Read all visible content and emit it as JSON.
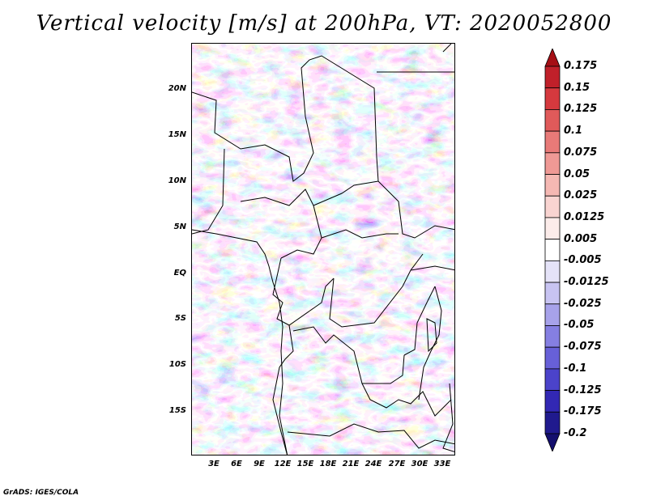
{
  "title": "Vertical velocity [m/s] at 200hPa, VT: 2020052800",
  "credit": "GrADS: IGES/COLA",
  "lat_labels": [
    "20N",
    "15N",
    "10N",
    "5N",
    "EQ",
    "5S",
    "10S",
    "15S"
  ],
  "lon_labels": [
    "3E",
    "6E",
    "9E",
    "12E",
    "15E",
    "18E",
    "21E",
    "24E",
    "27E",
    "30E",
    "33E"
  ],
  "colorbar": {
    "labels": [
      "0.175",
      "0.15",
      "0.125",
      "0.1",
      "0.075",
      "0.05",
      "0.025",
      "0.0125",
      "0.005",
      "-0.005",
      "-0.0125",
      "-0.025",
      "-0.05",
      "-0.075",
      "-0.1",
      "-0.125",
      "-0.175",
      "-0.2"
    ],
    "colors": [
      "#a50f15",
      "#c0202a",
      "#d5393e",
      "#e05a5a",
      "#e87a78",
      "#ef9995",
      "#f5b8b3",
      "#f9d4d1",
      "#fcecea",
      "#ffffff",
      "#e5e3f8",
      "#c8c4f2",
      "#a7a2ea",
      "#857fe2",
      "#6760d8",
      "#4b43ca",
      "#3228b4",
      "#201a8e",
      "#140f6e"
    ]
  }
}
